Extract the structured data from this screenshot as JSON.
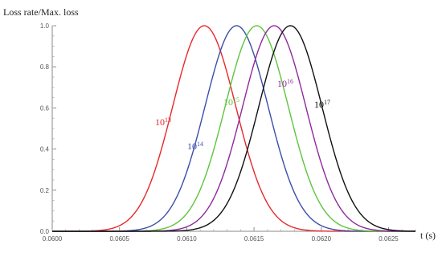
{
  "chart_data": {
    "type": "line",
    "xlabel": "t (s)",
    "ylabel": "Loss rate/Max. loss",
    "xlim": [
      0.06,
      0.0627
    ],
    "ylim": [
      0,
      1.0
    ],
    "x_ticks": [
      0.06,
      0.0605,
      0.061,
      0.0615,
      0.062,
      0.0625
    ],
    "x_tick_labels": [
      "0.0600",
      "0.0605",
      "0.0610",
      "0.0615",
      "0.0620",
      "0.0625"
    ],
    "y_ticks": [
      0.0,
      0.2,
      0.4,
      0.6,
      0.8,
      1.0
    ],
    "y_tick_labels": [
      "0.0",
      "0.2",
      "0.4",
      "0.6",
      "0.8",
      "1.0"
    ],
    "grid": false,
    "series": [
      {
        "base": "10",
        "exponent": "13",
        "color": "#e8282b",
        "peak_x": 0.06113,
        "sigma": 0.000235
      },
      {
        "base": "10",
        "exponent": "14",
        "color": "#3b4fa8",
        "peak_x": 0.06137,
        "sigma": 0.000235
      },
      {
        "base": "10",
        "exponent": "15",
        "color": "#5ec43d",
        "peak_x": 0.06152,
        "sigma": 0.000235
      },
      {
        "base": "10",
        "exponent": "16",
        "color": "#8e2a9c",
        "peak_x": 0.06165,
        "sigma": 0.000235
      },
      {
        "base": "10",
        "exponent": "17",
        "color": "#111111",
        "peak_x": 0.06177,
        "sigma": 0.000235
      }
    ]
  }
}
